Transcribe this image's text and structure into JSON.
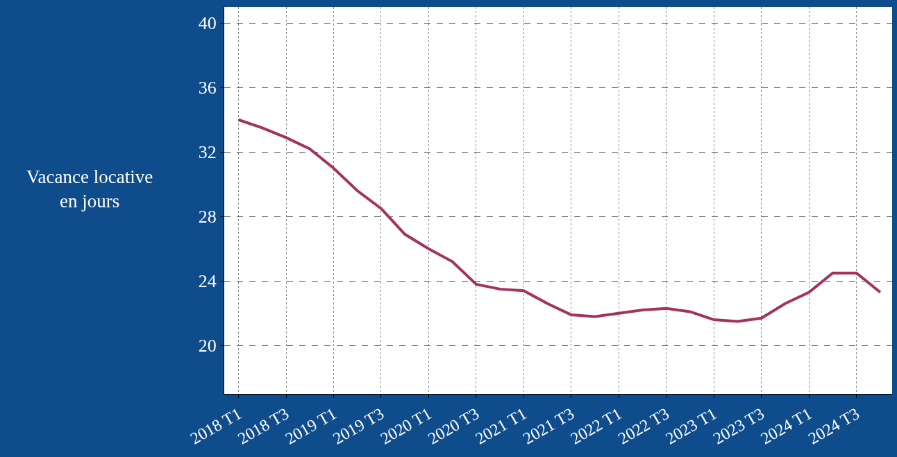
{
  "chart_data": {
    "type": "line",
    "ylabel": "Vacance locative\nen jours",
    "categories": [
      "2018 T1",
      null,
      "2018 T3",
      null,
      "2019 T1",
      null,
      "2019 T3",
      null,
      "2020 T1",
      null,
      "2020 T3",
      null,
      "2021 T1",
      null,
      "2021 T3",
      null,
      "2022 T1",
      null,
      "2022 T3",
      null,
      "2023 T1",
      null,
      "2023 T3",
      null,
      "2024 T1",
      null,
      "2024 T3",
      null
    ],
    "series": [
      {
        "color": "#a3325f",
        "values": [
          34.0,
          33.5,
          32.9,
          32.2,
          31.0,
          29.6,
          28.5,
          26.9,
          26.0,
          25.2,
          23.8,
          23.5,
          23.4,
          22.6,
          21.9,
          21.8,
          22.0,
          22.2,
          22.3,
          22.1,
          21.6,
          21.5,
          21.7,
          22.6,
          23.3,
          24.5,
          24.5,
          23.3
        ]
      }
    ],
    "ylim": [
      17,
      41
    ],
    "yticks": [
      20,
      24,
      28,
      32,
      36,
      40
    ],
    "grid": true,
    "marker": "none",
    "line_style": "solid"
  }
}
